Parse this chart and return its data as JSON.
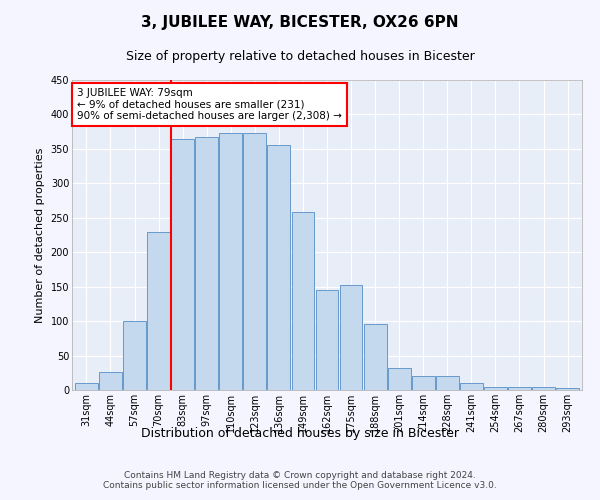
{
  "title": "3, JUBILEE WAY, BICESTER, OX26 6PN",
  "subtitle": "Size of property relative to detached houses in Bicester",
  "xlabel": "Distribution of detached houses by size in Bicester",
  "ylabel": "Number of detached properties",
  "categories": [
    "31sqm",
    "44sqm",
    "57sqm",
    "70sqm",
    "83sqm",
    "97sqm",
    "110sqm",
    "123sqm",
    "136sqm",
    "149sqm",
    "162sqm",
    "175sqm",
    "188sqm",
    "201sqm",
    "214sqm",
    "228sqm",
    "241sqm",
    "254sqm",
    "267sqm",
    "280sqm",
    "293sqm"
  ],
  "values": [
    10,
    26,
    100,
    230,
    364,
    367,
    373,
    373,
    356,
    259,
    145,
    153,
    96,
    32,
    20,
    20,
    10,
    5,
    5,
    5,
    3
  ],
  "bar_color": "#c5d9ee",
  "bar_edge_color": "#6699cc",
  "annotation_box_text": "3 JUBILEE WAY: 79sqm\n← 9% of detached houses are smaller (231)\n90% of semi-detached houses are larger (2,308) →",
  "annotation_box_color": "white",
  "annotation_box_edge_color": "red",
  "vline_color": "red",
  "ylim": [
    0,
    450
  ],
  "yticks": [
    0,
    50,
    100,
    150,
    200,
    250,
    300,
    350,
    400,
    450
  ],
  "footer": "Contains HM Land Registry data © Crown copyright and database right 2024.\nContains public sector information licensed under the Open Government Licence v3.0.",
  "fig_background": "#f5f5ff",
  "plot_background": "#e8eef8",
  "grid_color": "#ffffff",
  "title_fontsize": 11,
  "subtitle_fontsize": 9,
  "xlabel_fontsize": 9,
  "ylabel_fontsize": 8,
  "tick_fontsize": 7,
  "annotation_fontsize": 7.5,
  "footer_fontsize": 6.5
}
